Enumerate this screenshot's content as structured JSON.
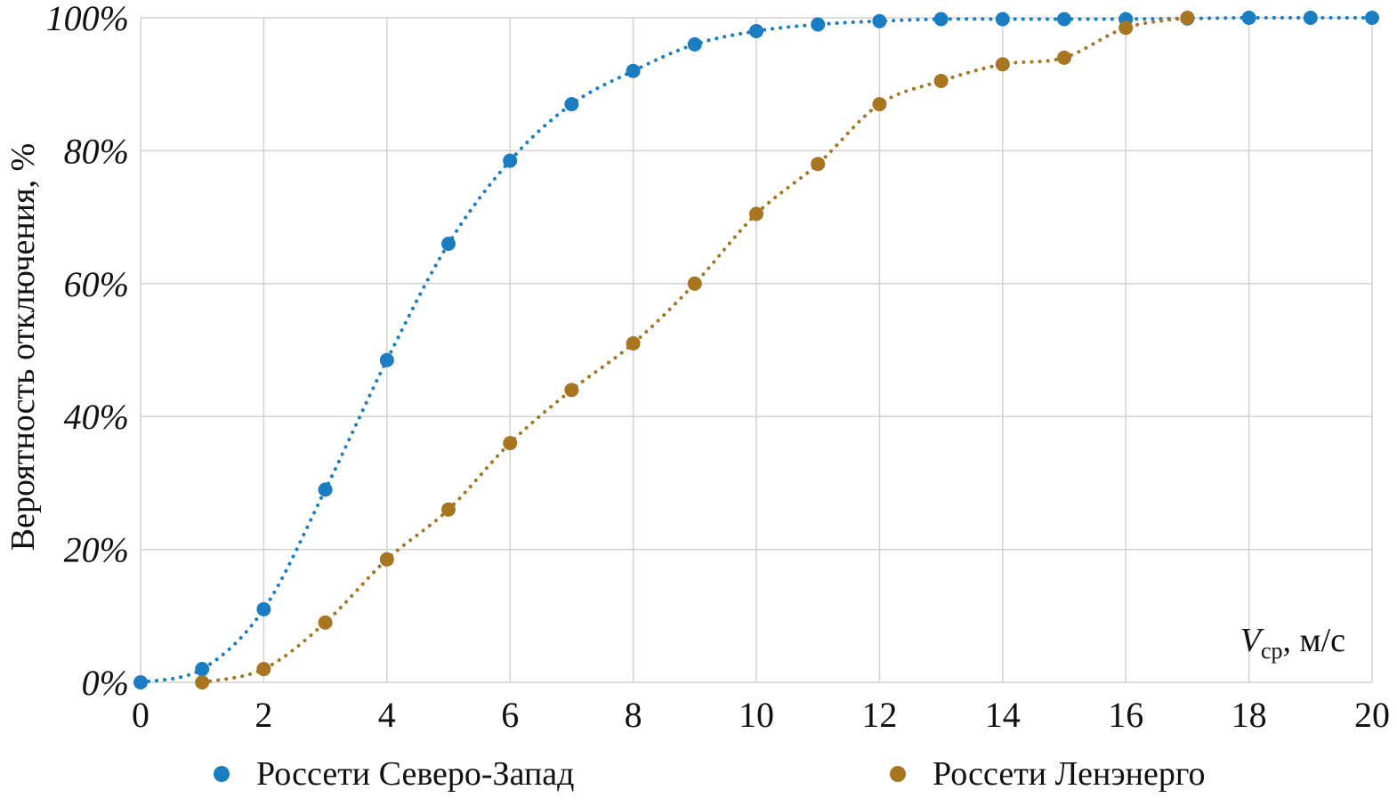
{
  "chart_data": {
    "type": "scatter",
    "title": "",
    "xlabel": "V",
    "xlabel_sub": "ср",
    "xlabel_unit": ", м/с",
    "ylabel": "Вероятность отключения, %",
    "xlim": [
      0,
      20
    ],
    "ylim": [
      0,
      100
    ],
    "x_ticks": [
      "0",
      "2",
      "4",
      "6",
      "8",
      "10",
      "12",
      "14",
      "16",
      "18",
      "20"
    ],
    "y_ticks": [
      "0%",
      "20%",
      "40%",
      "60%",
      "80%",
      "100%"
    ],
    "grid": true,
    "legend_position": "bottom",
    "series": [
      {
        "name": "Россети Северо-Запад",
        "color": "#1a7dc2",
        "x": [
          0,
          1,
          2,
          3,
          4,
          5,
          6,
          7,
          8,
          9,
          10,
          11,
          12,
          13,
          14,
          15,
          16,
          17,
          18,
          19,
          20
        ],
        "values": [
          0,
          2,
          11,
          29,
          48.5,
          66,
          78.5,
          87,
          92,
          96,
          98,
          99,
          99.5,
          99.8,
          99.8,
          99.8,
          99.8,
          99.9,
          100,
          100,
          100
        ],
        "trendline": "dotted"
      },
      {
        "name": "Россети Ленэнерго",
        "color": "#a87520",
        "x": [
          1,
          2,
          3,
          4,
          5,
          6,
          7,
          8,
          9,
          10,
          11,
          12,
          13,
          14,
          15,
          16,
          17
        ],
        "values": [
          0,
          2,
          9,
          18.5,
          26,
          36,
          44,
          51,
          60,
          70.5,
          78,
          87,
          90.5,
          93,
          94,
          98.5,
          100
        ],
        "trendline": "dotted"
      }
    ]
  }
}
